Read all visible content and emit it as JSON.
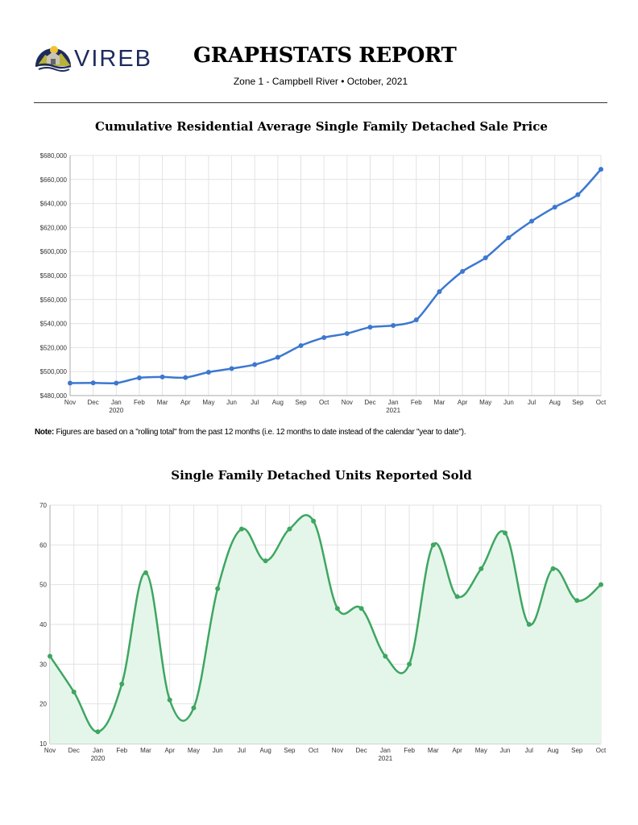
{
  "header": {
    "logo_text": "VIREB",
    "title": "GRAPHSTATS REPORT",
    "subtitle": "Zone 1 - Campbell River  •  October, 2021"
  },
  "note": {
    "label": "Note:",
    "text": " Figures are based on a \"rolling total\" from the past 12 months (i.e. 12 months to date instead of the calendar \"year to date\")."
  },
  "chart_data": [
    {
      "type": "line",
      "title": "Cumulative Residential Average Single Family Detached Sale Price",
      "categories": [
        "Nov",
        "Dec",
        "Jan",
        "Feb",
        "Mar",
        "Apr",
        "May",
        "Jun",
        "Jul",
        "Aug",
        "Sep",
        "Oct",
        "Nov",
        "Dec",
        "Jan",
        "Feb",
        "Mar",
        "Apr",
        "May",
        "Jun",
        "Jul",
        "Aug",
        "Sep",
        "Oct"
      ],
      "year_labels": {
        "2": "2020",
        "14": "2021"
      },
      "values": [
        490400,
        490600,
        490400,
        494800,
        495500,
        495000,
        499500,
        502500,
        505800,
        511900,
        521600,
        528300,
        531700,
        537000,
        538400,
        543100,
        566600,
        583400,
        594800,
        611500,
        625300,
        637000,
        647400,
        668500
      ],
      "ylim": [
        480000,
        680000
      ],
      "yticks": [
        "$480,000",
        "$500,000",
        "$520,000",
        "$540,000",
        "$560,000",
        "$580,000",
        "$600,000",
        "$620,000",
        "$640,000",
        "$660,000",
        "$680,000"
      ],
      "grid": true,
      "color": "#3c78d0"
    },
    {
      "type": "area",
      "title": "Single Family Detached Units Reported Sold",
      "categories": [
        "Nov",
        "Dec",
        "Jan",
        "Feb",
        "Mar",
        "Apr",
        "May",
        "Jun",
        "Jul",
        "Aug",
        "Sep",
        "Oct",
        "Nov",
        "Dec",
        "Jan",
        "Feb",
        "Mar",
        "Apr",
        "May",
        "Jun",
        "Jul",
        "Aug",
        "Sep",
        "Oct"
      ],
      "year_labels": {
        "2": "2020",
        "14": "2021"
      },
      "values": [
        32,
        23,
        13,
        25,
        53,
        21,
        19,
        49,
        64,
        56,
        64,
        66,
        44,
        44,
        32,
        30,
        60,
        47,
        54,
        63,
        40,
        54,
        46,
        50
      ],
      "ylim": [
        10,
        70
      ],
      "yticks": [
        "10",
        "20",
        "30",
        "40",
        "50",
        "60",
        "70"
      ],
      "grid": true,
      "color": "#3ea662",
      "fill": "#e4f6e9"
    }
  ]
}
